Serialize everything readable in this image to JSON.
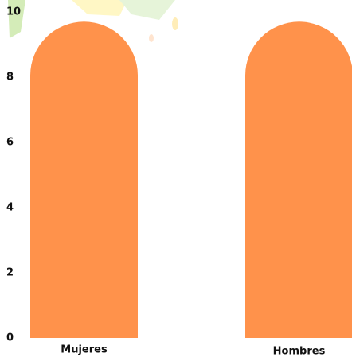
{
  "chart_data": {
    "type": "bar",
    "categories": [
      "Mujeres",
      "Hombres"
    ],
    "values": [
      9.7,
      9.7
    ],
    "color": "#ff924b",
    "ylim": [
      0,
      10
    ],
    "yticks": [
      0,
      2,
      4,
      6,
      8,
      10
    ]
  }
}
